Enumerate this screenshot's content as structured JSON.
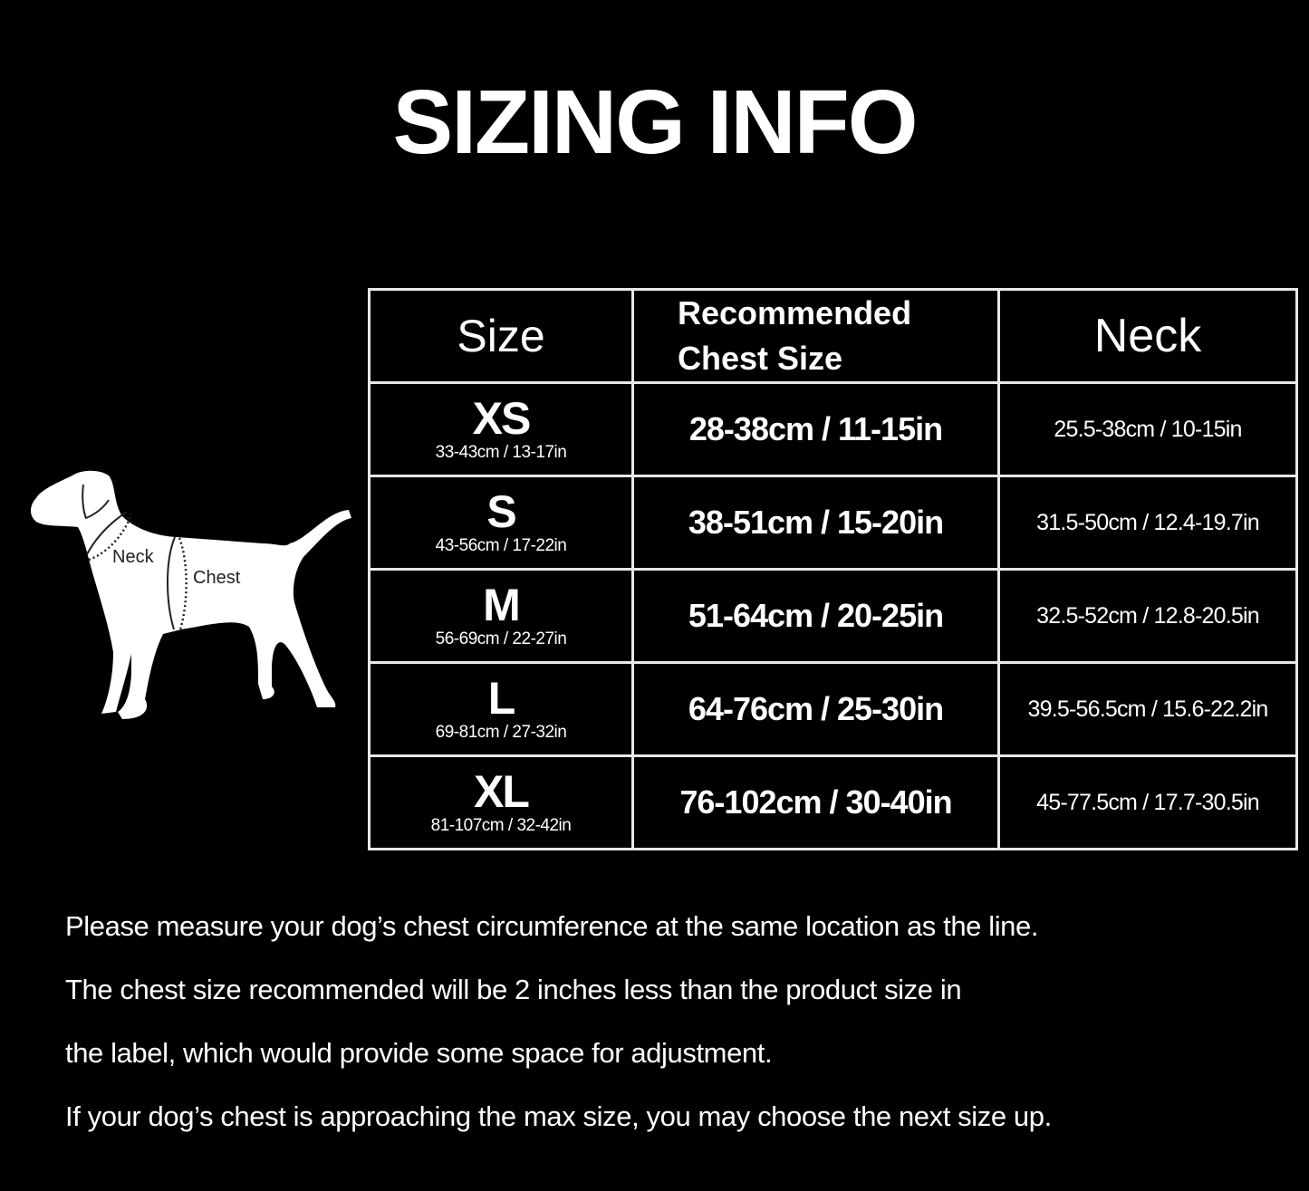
{
  "title": "SIZING INFO",
  "diagram": {
    "neck_label": "Neck",
    "chest_label": "Chest"
  },
  "table": {
    "headers": {
      "size": "Size",
      "chest_line1": "Recommended",
      "chest_line2": "Chest Size",
      "neck": "Neck"
    },
    "rows": [
      {
        "size": "XS",
        "product_size": "33-43cm / 13-17in",
        "chest": "28-38cm / 11-15in",
        "neck": "25.5-38cm / 10-15in"
      },
      {
        "size": "S",
        "product_size": "43-56cm / 17-22in",
        "chest": "38-51cm / 15-20in",
        "neck": "31.5-50cm / 12.4-19.7in"
      },
      {
        "size": "M",
        "product_size": "56-69cm / 22-27in",
        "chest": "51-64cm / 20-25in",
        "neck": "32.5-52cm / 12.8-20.5in"
      },
      {
        "size": "L",
        "product_size": "69-81cm / 27-32in",
        "chest": "64-76cm / 25-30in",
        "neck": "39.5-56.5cm / 15.6-22.2in"
      },
      {
        "size": "XL",
        "product_size": "81-107cm / 32-42in",
        "chest": "76-102cm / 30-40in",
        "neck": "45-77.5cm / 17.7-30.5in"
      }
    ]
  },
  "notes": [
    "Please measure your dog’s chest circumference at the same location as the line.",
    "The chest size recommended will be 2 inches less than the product size in",
    "the label, which would provide some space for adjustment.",
    "If your dog’s chest is approaching the max size, you may choose the next size up."
  ]
}
